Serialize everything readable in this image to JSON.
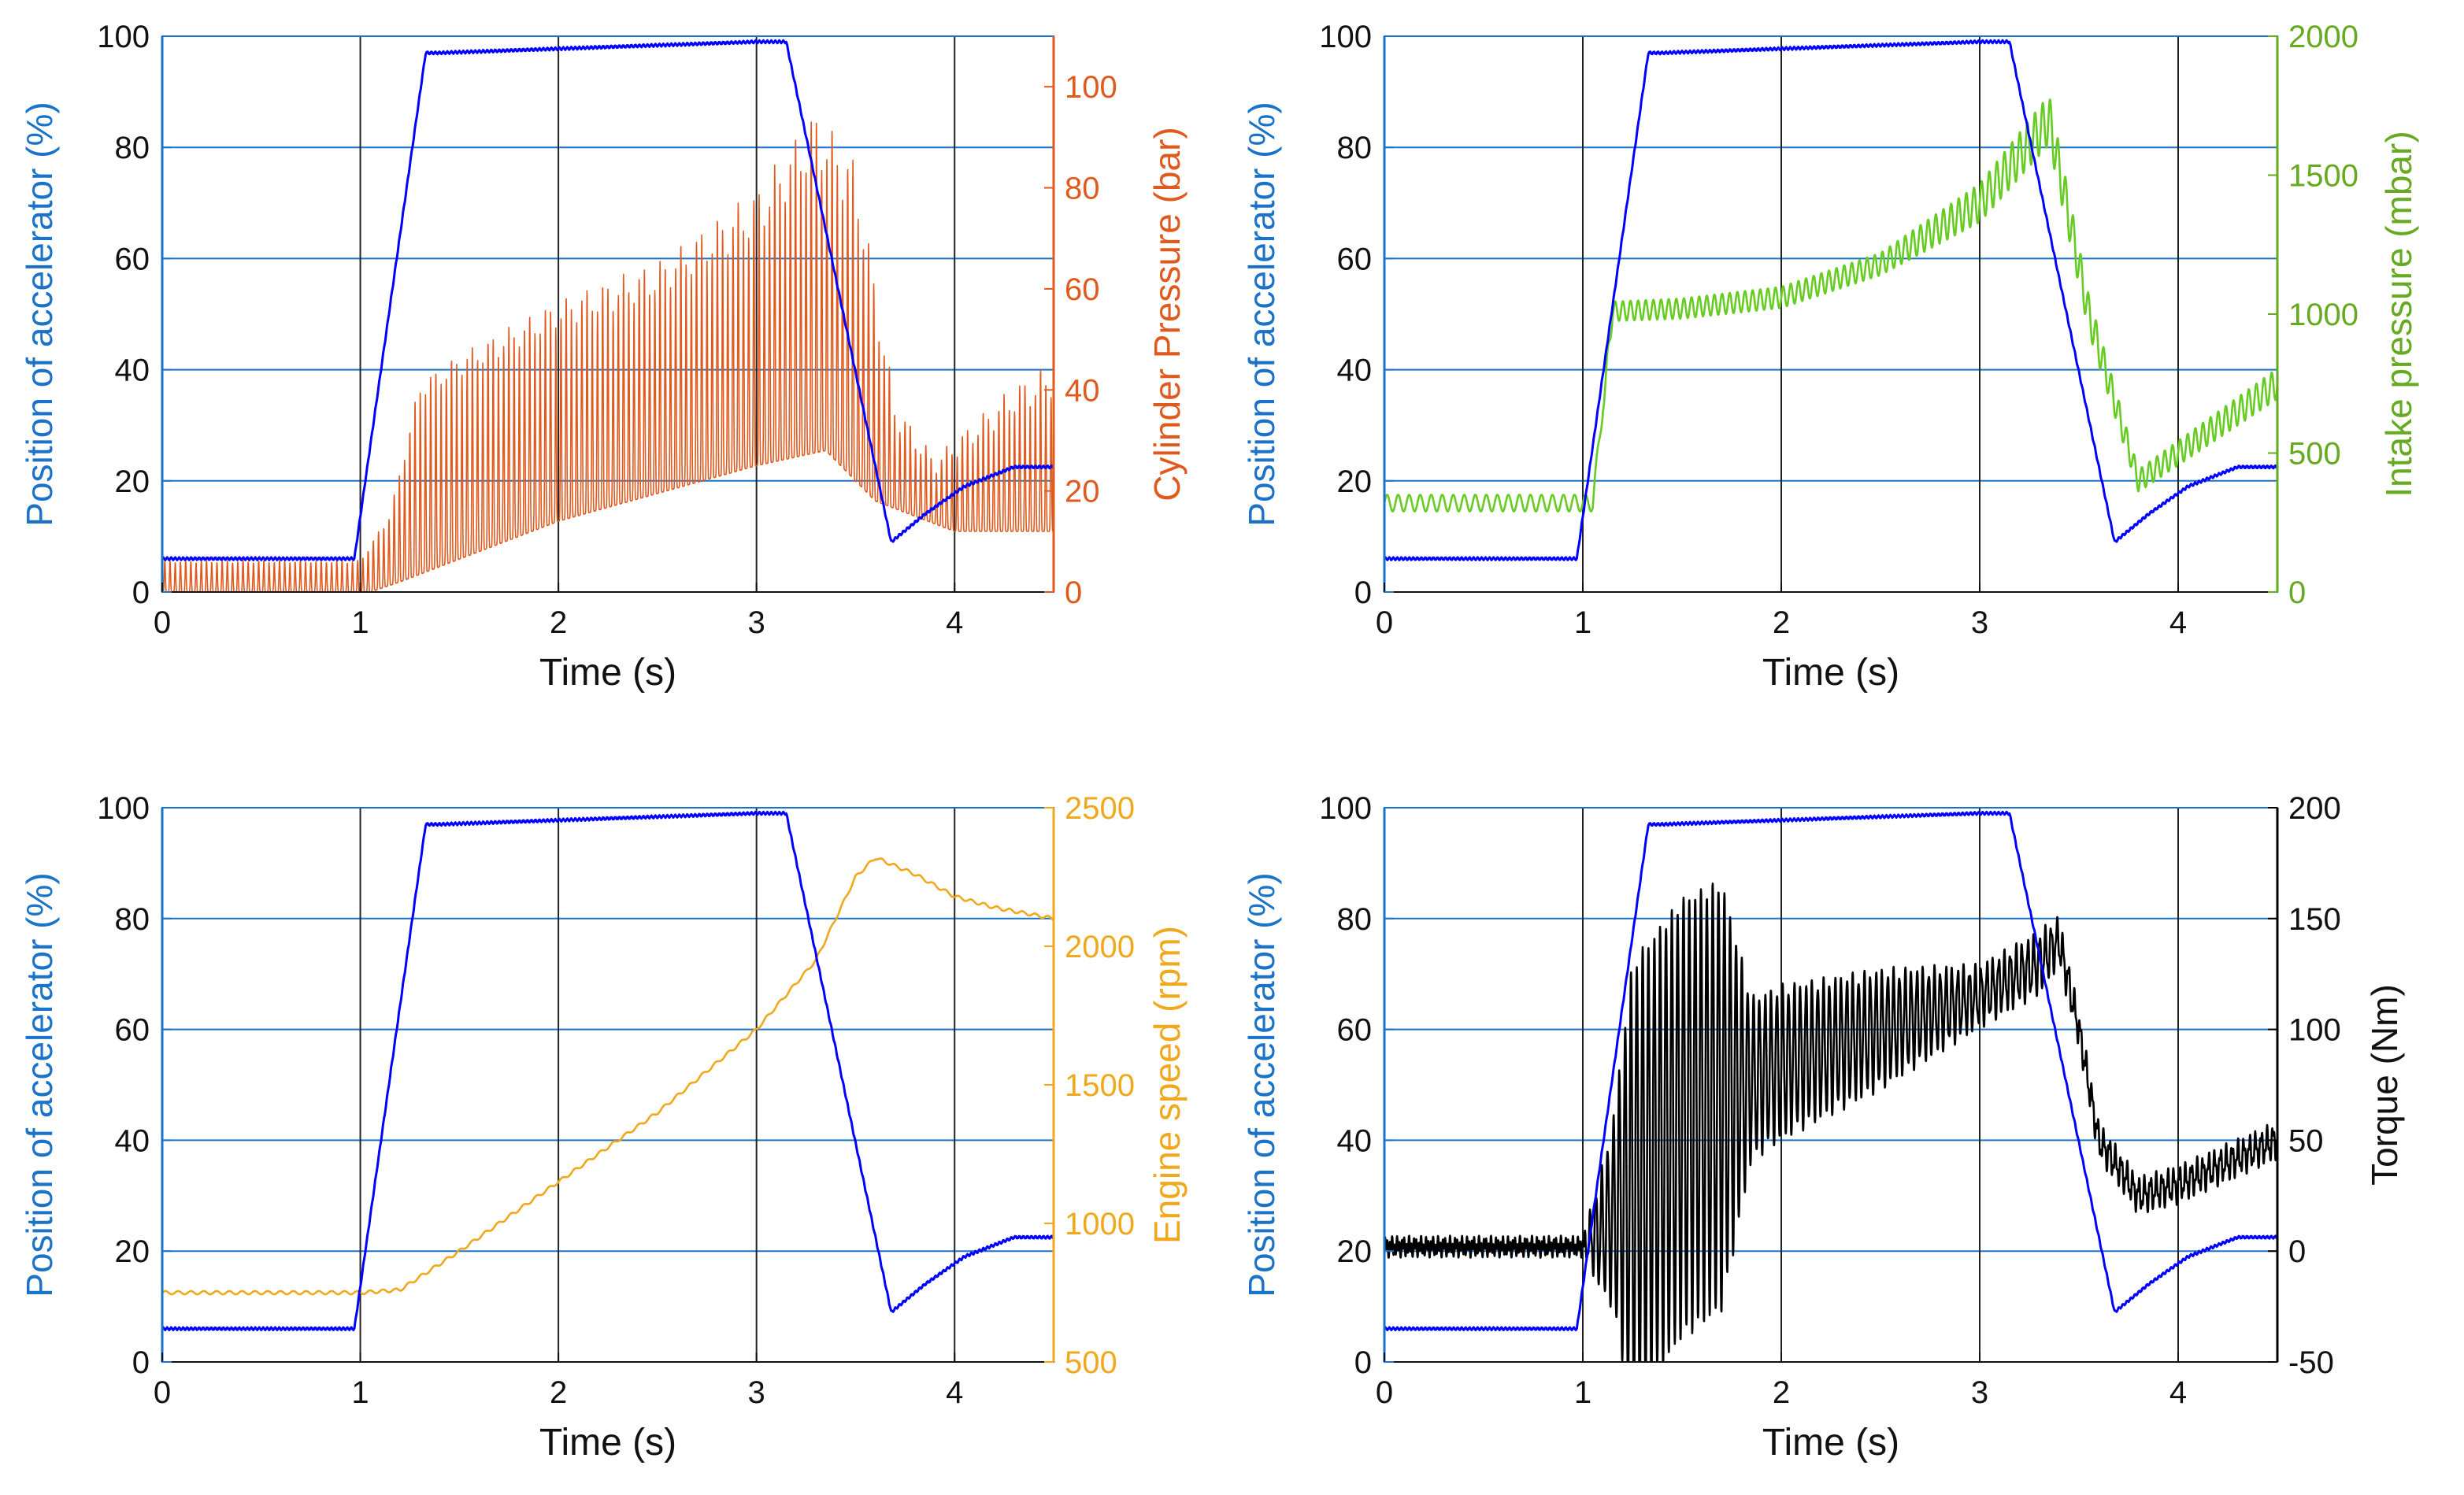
{
  "figure": {
    "colors": {
      "accelerator": "#0000ff",
      "left_axis_text": "#1a73c8",
      "grid_h": "#1a73c8",
      "grid_v": "#222222",
      "cylinder_pressure": "#e05a1e",
      "intake_pressure": "#66cc22",
      "intake_axis_text": "#66aa22",
      "engine_speed": "#f0a81c",
      "engine_axis_text": "#f0a81c",
      "torque": "#000000",
      "torque_axis_text": "#000000"
    }
  },
  "chart_data": [
    {
      "type": "line",
      "id": "cylinder",
      "xlabel": "Time (s)",
      "ylabel_left": "Position of accelerator (%)",
      "ylabel_right": "Cylinder Pressure (bar)",
      "xlim": [
        0,
        4.5
      ],
      "xticks": [
        "0",
        "1",
        "2",
        "3",
        "4"
      ],
      "ylim_left": [
        0,
        100
      ],
      "yticks_left": [
        "0",
        "20",
        "40",
        "60",
        "80",
        "100"
      ],
      "ylim_right": [
        0,
        110
      ],
      "yticks_right": [
        "0",
        "20",
        "40",
        "60",
        "80",
        "100"
      ],
      "grid": true,
      "series": [
        {
          "name": "Position of accelerator",
          "axis": "left",
          "x": [
            0,
            0.97,
            1.33,
            1.4,
            3.0,
            3.15,
            3.68,
            3.85,
            4.05,
            4.3,
            4.5
          ],
          "y": [
            6,
            6,
            97,
            97,
            99,
            99,
            9,
            14,
            19,
            22.5,
            22.5
          ]
        },
        {
          "name": "Cylinder Pressure",
          "axis": "right",
          "signal": "oscillating",
          "base_x": [
            0,
            1.05,
            1.2,
            2.0,
            3.0,
            3.35,
            3.6,
            4.0,
            4.5
          ],
          "base_y": [
            0,
            0,
            2,
            14,
            25,
            28,
            18,
            12,
            12
          ],
          "peak_x": [
            0,
            1.0,
            1.15,
            1.3,
            1.5,
            2.0,
            2.5,
            3.0,
            3.3,
            3.5,
            3.7,
            3.9,
            4.3,
            4.5
          ],
          "peak_y": [
            6,
            6,
            15,
            40,
            45,
            55,
            62,
            75,
            90,
            80,
            35,
            25,
            38,
            42
          ]
        }
      ]
    },
    {
      "type": "line",
      "id": "intake",
      "xlabel": "Time (s)",
      "ylabel_left": "Position of accelerator (%)",
      "ylabel_right": "Intake pressure (mbar)",
      "xlim": [
        0,
        4.5
      ],
      "xticks": [
        "0",
        "1",
        "2",
        "3",
        "4"
      ],
      "ylim_left": [
        0,
        100
      ],
      "yticks_left": [
        "0",
        "20",
        "40",
        "60",
        "80",
        "100"
      ],
      "ylim_right": [
        0,
        2000
      ],
      "yticks_right": [
        "0",
        "500",
        "1000",
        "1500",
        "2000"
      ],
      "grid": true,
      "series": [
        {
          "name": "Position of accelerator",
          "axis": "left",
          "x": [
            0,
            0.97,
            1.33,
            1.4,
            3.0,
            3.15,
            3.68,
            3.85,
            4.05,
            4.3,
            4.5
          ],
          "y": [
            6,
            6,
            97,
            97,
            99,
            99,
            9,
            14,
            19,
            22.5,
            22.5
          ]
        },
        {
          "name": "Intake pressure",
          "axis": "right",
          "signal": "ripple",
          "x": [
            0,
            1.05,
            1.15,
            1.5,
            2.0,
            2.5,
            3.0,
            3.35,
            3.55,
            3.8,
            4.0,
            4.3,
            4.5
          ],
          "y": [
            320,
            320,
            1010,
            1020,
            1060,
            1180,
            1400,
            1700,
            1000,
            400,
            500,
            650,
            750
          ],
          "amp_x": [
            0,
            1.05,
            1.15,
            2.5,
            3.35,
            3.8,
            4.5
          ],
          "amp_y": [
            30,
            30,
            35,
            40,
            90,
            40,
            55
          ]
        }
      ]
    },
    {
      "type": "line",
      "id": "speed",
      "xlabel": "Time (s)",
      "ylabel_left": "Position of accelerator (%)",
      "ylabel_right": "Engine speed (rpm)",
      "xlim": [
        0,
        4.5
      ],
      "xticks": [
        "0",
        "1",
        "2",
        "3",
        "4"
      ],
      "ylim_left": [
        0,
        100
      ],
      "yticks_left": [
        "0",
        "20",
        "40",
        "60",
        "80",
        "100"
      ],
      "ylim_right": [
        500,
        2500
      ],
      "yticks_right": [
        "500",
        "1000",
        "1500",
        "2000",
        "2500"
      ],
      "grid": true,
      "series": [
        {
          "name": "Position of accelerator",
          "axis": "left",
          "x": [
            0,
            0.97,
            1.33,
            1.4,
            3.0,
            3.15,
            3.68,
            3.85,
            4.05,
            4.3,
            4.5
          ],
          "y": [
            6,
            6,
            97,
            97,
            99,
            99,
            9,
            14,
            19,
            22.5,
            22.5
          ]
        },
        {
          "name": "Engine speed",
          "axis": "right",
          "x": [
            0,
            1.0,
            1.2,
            1.5,
            2.0,
            2.5,
            3.0,
            3.3,
            3.5,
            3.6,
            3.8,
            4.0,
            4.2,
            4.5
          ],
          "y": [
            750,
            750,
            760,
            900,
            1150,
            1400,
            1700,
            1950,
            2250,
            2320,
            2260,
            2180,
            2140,
            2100
          ]
        }
      ]
    },
    {
      "type": "line",
      "id": "torque",
      "xlabel": "Time (s)",
      "ylabel_left": "Position of accelerator (%)",
      "ylabel_right": "Torque (Nm)",
      "xlim": [
        0,
        4.5
      ],
      "xticks": [
        "0",
        "1",
        "2",
        "3",
        "4"
      ],
      "ylim_left": [
        0,
        100
      ],
      "yticks_left": [
        "0",
        "20",
        "40",
        "60",
        "80",
        "100"
      ],
      "ylim_right": [
        -50,
        200
      ],
      "yticks_right": [
        "-50",
        "0",
        "50",
        "100",
        "150",
        "200"
      ],
      "grid": true,
      "series": [
        {
          "name": "Position of accelerator",
          "axis": "left",
          "x": [
            0,
            0.97,
            1.33,
            1.4,
            3.0,
            3.15,
            3.68,
            3.85,
            4.05,
            4.3,
            4.5
          ],
          "y": [
            6,
            6,
            97,
            97,
            99,
            99,
            9,
            14,
            19,
            22.5,
            22.5
          ]
        },
        {
          "name": "Torque",
          "axis": "right",
          "signal": "oscillating-center",
          "x": [
            0,
            1.0,
            1.1,
            1.5,
            2.0,
            2.5,
            3.0,
            3.3,
            3.4,
            3.5,
            3.6,
            3.8,
            4.0,
            4.5
          ],
          "y": [
            2,
            2,
            10,
            60,
            85,
            100,
            115,
            130,
            140,
            100,
            50,
            25,
            30,
            50
          ],
          "amp_x": [
            0,
            1.0,
            1.15,
            1.25,
            1.7,
            1.85,
            2.5,
            3.0,
            3.3,
            3.5,
            4.5
          ],
          "amp_y": [
            2,
            2,
            40,
            100,
            95,
            35,
            25,
            12,
            12,
            6,
            6
          ]
        }
      ]
    }
  ]
}
